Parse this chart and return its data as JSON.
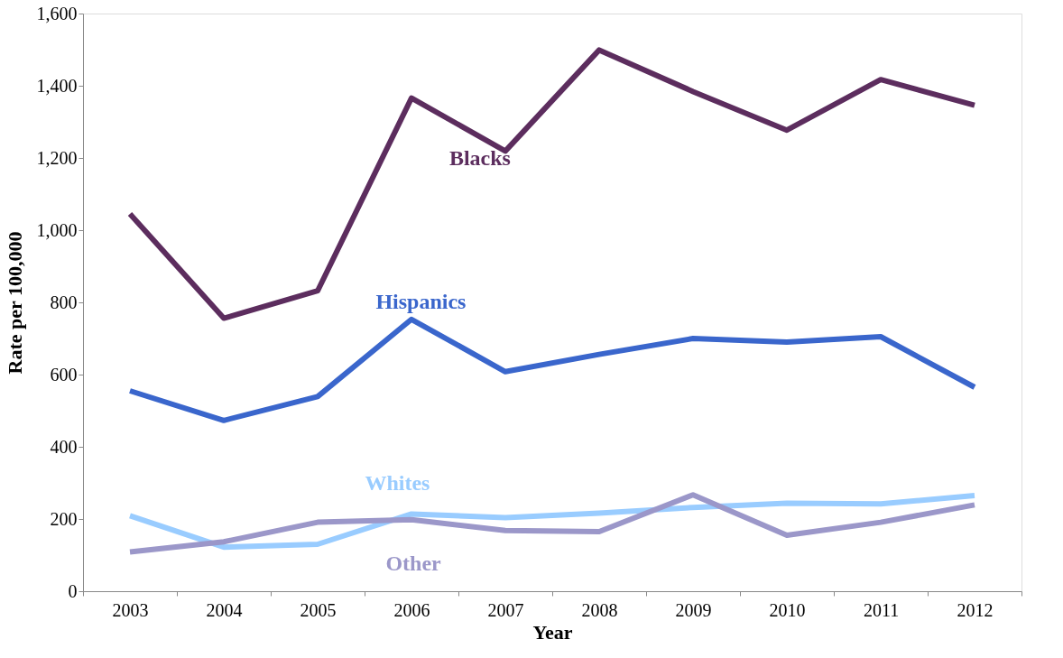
{
  "chart_data": {
    "type": "line",
    "xlabel": "Year",
    "ylabel": "Rate per 100,000",
    "categories": [
      "2003",
      "2004",
      "2005",
      "2006",
      "2007",
      "2008",
      "2009",
      "2010",
      "2011",
      "2012"
    ],
    "series": [
      {
        "name": "Blacks",
        "color": "#5c2d5e",
        "values": [
          1045,
          756,
          832,
          1366,
          1219,
          1499,
          1384,
          1277,
          1417,
          1346
        ]
      },
      {
        "name": "Hispanics",
        "color": "#3a66cc",
        "values": [
          555,
          473,
          539,
          753,
          608,
          656,
          700,
          690,
          705,
          565
        ]
      },
      {
        "name": "Whites",
        "color": "#99ccff",
        "values": [
          209,
          122,
          130,
          214,
          204,
          216,
          232,
          244,
          242,
          265
        ]
      },
      {
        "name": "Other",
        "color": "#9b97c9",
        "values": [
          109,
          137,
          191,
          198,
          168,
          165,
          267,
          155,
          191,
          239
        ]
      }
    ],
    "ylim": [
      0,
      1600
    ],
    "yticks": [
      {
        "value": 0,
        "label": "0"
      },
      {
        "value": 200,
        "label": "200"
      },
      {
        "value": 400,
        "label": "400"
      },
      {
        "value": 600,
        "label": "600"
      },
      {
        "value": 800,
        "label": "800"
      },
      {
        "value": 1000,
        "label": "1,000"
      },
      {
        "value": 1200,
        "label": "1,200"
      },
      {
        "value": 1400,
        "label": "1,400"
      },
      {
        "value": 1600,
        "label": "1,600"
      }
    ],
    "legend": false,
    "marker": "none",
    "line_style": "solid"
  }
}
